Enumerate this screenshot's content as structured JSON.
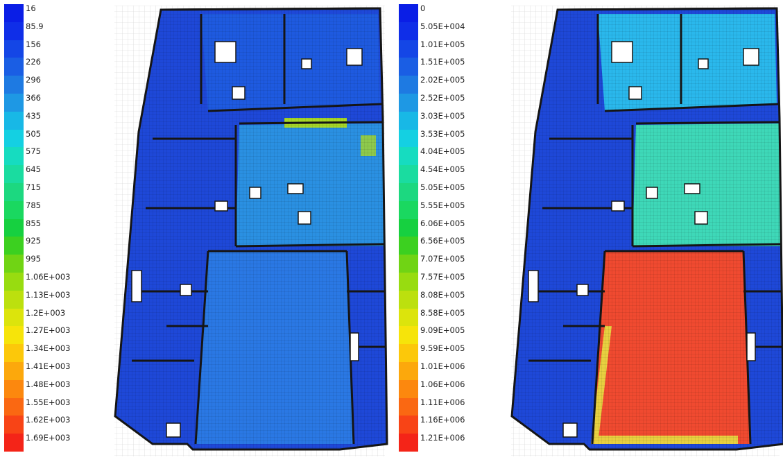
{
  "legend_left": {
    "labels": [
      "16",
      "85.9",
      "156",
      "226",
      "296",
      "366",
      "435",
      "505",
      "575",
      "645",
      "715",
      "785",
      "855",
      "925",
      "995",
      "1.06E+003",
      "1.13E+003",
      "1.2E+003",
      "1.27E+003",
      "1.34E+003",
      "1.41E+003",
      "1.48E+003",
      "1.55E+003",
      "1.62E+003",
      "1.69E+003"
    ]
  },
  "legend_right": {
    "labels": [
      "0",
      "5.05E+004",
      "1.01E+005",
      "1.51E+005",
      "2.02E+005",
      "2.52E+005",
      "3.03E+005",
      "3.53E+005",
      "4.04E+005",
      "4.54E+005",
      "5.05E+005",
      "5.55E+005",
      "6.06E+005",
      "6.56E+005",
      "7.07E+005",
      "7.57E+005",
      "8.08E+005",
      "8.58E+005",
      "9.09E+005",
      "9.59E+005",
      "1.01E+006",
      "1.06E+006",
      "1.11E+006",
      "1.16E+006",
      "1.21E+006"
    ]
  },
  "colorscale": [
    "#0a1ee6",
    "#0f2ee8",
    "#1446e6",
    "#1a5ee4",
    "#1e7ae2",
    "#1e98e4",
    "#18b8e6",
    "#14d0e2",
    "#16dcc0",
    "#1adca0",
    "#1cd880",
    "#1ad860",
    "#16d040",
    "#3cd020",
    "#70d414",
    "#98dc10",
    "#bce00e",
    "#dce40c",
    "#f6e40a",
    "#fcc80a",
    "#fca80c",
    "#fc880e",
    "#fa6812",
    "#f84416",
    "#f42418"
  ],
  "plan_left": {
    "zones": {
      "outer": "#1e48d8",
      "north_wing": "#1e5ae0",
      "central_hall": "#2a90e2",
      "south_hall": "#2a78e4",
      "hotspot": "#a8d828"
    }
  },
  "plan_right": {
    "zones": {
      "outer": "#1e48d8",
      "north_wing": "#2ab8ec",
      "central_hall": "#3ed8b8",
      "south_hall": "#f04a30",
      "south_edge": "#e8d040"
    }
  }
}
